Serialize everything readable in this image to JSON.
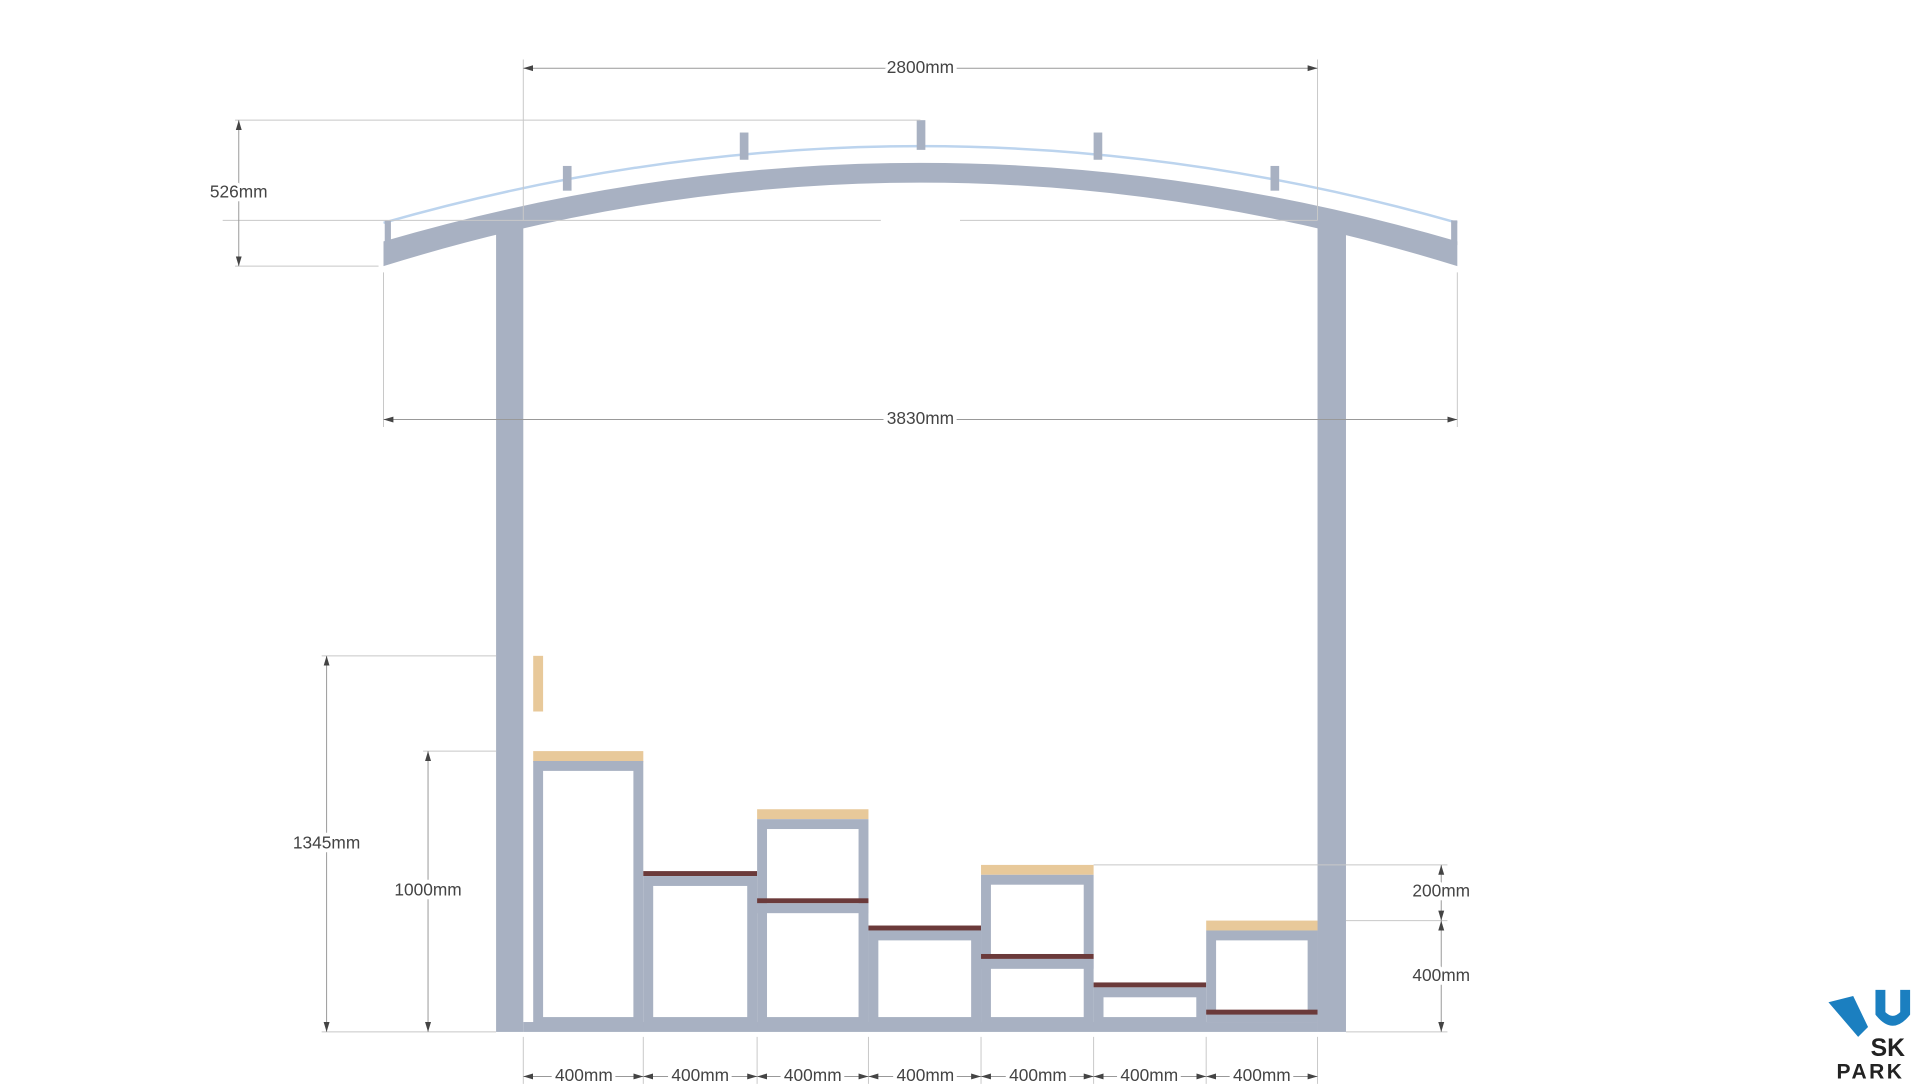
{
  "dimensions": {
    "top_width": "2800mm",
    "canopy_height": "526mm",
    "overall_width": "3830mm",
    "back_height": "1345mm",
    "seat_height": "1000mm",
    "step_rise": "200mm",
    "step_height": "400mm",
    "step_widths": [
      "400mm",
      "400mm",
      "400mm",
      "400mm",
      "400mm",
      "400mm",
      "400mm"
    ]
  },
  "logo": {
    "line1": "SK",
    "line2": "PARK"
  }
}
